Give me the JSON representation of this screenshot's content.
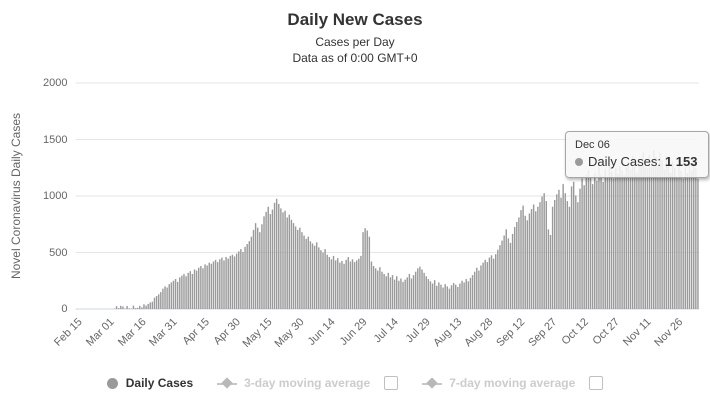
{
  "header": {
    "title": "Daily New Cases",
    "subtitle1": "Cases per Day",
    "subtitle2": "Data as of 0:00 GMT+0"
  },
  "colors": {
    "bar": "#9a9a9a",
    "gridline": "#e6e6e6",
    "axis_line": "#ccd6eb",
    "tick_text": "#666666",
    "title_text": "#333333",
    "hidden_legend_text": "#cccccc"
  },
  "tooltip": {
    "date": "Dec 06",
    "series_label": "Daily Cases:",
    "value": "1 153"
  },
  "legend": {
    "items": [
      {
        "label": "Daily Cases",
        "marker": "circle",
        "visible": true,
        "has_checkbox": false
      },
      {
        "label": "3-day moving average",
        "marker": "line-diamond",
        "visible": false,
        "has_checkbox": true,
        "checked": false
      },
      {
        "label": "7-day moving average",
        "marker": "line-diamond",
        "visible": false,
        "has_checkbox": true,
        "checked": false
      }
    ]
  },
  "chart_data": {
    "type": "bar",
    "title": "Daily New Cases",
    "subtitle": "Cases per Day — Data as of 0:00 GMT+0",
    "xlabel": "",
    "ylabel": "Novel Coronavirus Daily Cases",
    "ylim": [
      0,
      2000
    ],
    "yticks": [
      0,
      500,
      1000,
      1500,
      2000
    ],
    "grid": "horizontal",
    "legend_position": "bottom",
    "xtick_labels": [
      "Feb 15",
      "Mar 01",
      "Mar 16",
      "Mar 31",
      "Apr 15",
      "Apr 30",
      "May 15",
      "May 30",
      "Jun 14",
      "Jun 29",
      "Jul 14",
      "Jul 29",
      "Aug 13",
      "Aug 28",
      "Sep 12",
      "Sep 27",
      "Oct 12",
      "Oct 27",
      "Nov 11",
      "Nov 26"
    ],
    "xtick_every": 15,
    "start_label": "Feb 15",
    "end_label": "Dec 06",
    "highlighted_point": {
      "label": "Dec 06",
      "value": 1153
    },
    "values": [
      0,
      0,
      0,
      0,
      0,
      0,
      0,
      0,
      0,
      0,
      0,
      0,
      0,
      0,
      0,
      0,
      0,
      0,
      3,
      25,
      8,
      28,
      22,
      5,
      27,
      6,
      4,
      30,
      8,
      10,
      28,
      14,
      42,
      30,
      45,
      58,
      65,
      100,
      115,
      130,
      150,
      180,
      200,
      190,
      220,
      235,
      250,
      265,
      240,
      280,
      295,
      310,
      290,
      320,
      335,
      310,
      350,
      340,
      365,
      380,
      360,
      395,
      385,
      410,
      400,
      420,
      435,
      415,
      440,
      455,
      430,
      460,
      445,
      470,
      480,
      465,
      490,
      510,
      530,
      505,
      550,
      575,
      600,
      640,
      700,
      760,
      720,
      680,
      750,
      820,
      860,
      905,
      840,
      880,
      940,
      975,
      930,
      890,
      855,
      870,
      810,
      835,
      790,
      760,
      730,
      700,
      720,
      680,
      650,
      620,
      640,
      600,
      580,
      560,
      590,
      545,
      520,
      500,
      530,
      480,
      460,
      440,
      470,
      430,
      450,
      410,
      425,
      400,
      435,
      460,
      420,
      440,
      415,
      430,
      445,
      470,
      680,
      715,
      695,
      640,
      420,
      380,
      360,
      340,
      370,
      330,
      310,
      290,
      320,
      280,
      300,
      260,
      290,
      250,
      270,
      240,
      260,
      280,
      310,
      270,
      300,
      330,
      360,
      375,
      350,
      320,
      290,
      265,
      245,
      225,
      255,
      205,
      235,
      215,
      190,
      220,
      200,
      180,
      210,
      230,
      215,
      195,
      225,
      250,
      235,
      265,
      245,
      275,
      300,
      330,
      365,
      340,
      385,
      410,
      435,
      415,
      455,
      475,
      445,
      485,
      525,
      565,
      605,
      650,
      705,
      625,
      585,
      665,
      725,
      770,
      810,
      875,
      915,
      825,
      785,
      845,
      885,
      925,
      865,
      905,
      945,
      995,
      1025,
      955,
      705,
      655,
      905,
      965,
      1015,
      1055,
      985,
      1105,
      1025,
      955,
      905,
      1085,
      1125,
      1005,
      945,
      1065,
      1155,
      1095,
      1185,
      1225,
      1165,
      1105,
      1205,
      1135,
      1255,
      1185,
      1125,
      1235,
      1165,
      1285,
      1215,
      1155,
      1245,
      1195,
      1265,
      1225,
      1185,
      1255,
      1305,
      1235,
      1355,
      1285,
      1205,
      1325,
      1265,
      1385,
      1305,
      1245,
      1365,
      1295,
      1405,
      1345,
      1265,
      1385,
      1315,
      1235,
      1355,
      1275,
      1205,
      1305,
      1245,
      1165,
      1285,
      1225,
      1155,
      1255,
      1205,
      1285,
      1225,
      1305,
      1245,
      1153
    ]
  }
}
